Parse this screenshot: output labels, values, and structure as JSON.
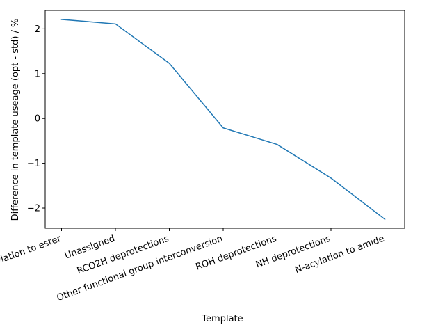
{
  "chart_data": {
    "type": "line",
    "title": "",
    "xlabel": "Template",
    "ylabel": "Difference in template useage (opt - std) / %",
    "categories": [
      "O-acylation to ester",
      "Unassigned",
      "RCO2H deprotections",
      "Other functional group interconversion",
      "ROH deprotections",
      "NH deprotections",
      "N-acylation to amide"
    ],
    "series": [
      {
        "values": [
          2.21,
          2.11,
          1.23,
          -0.21,
          -0.58,
          -1.33,
          -2.25
        ],
        "color": "#1f77b4"
      }
    ],
    "ylim": [
      -2.45,
      2.41
    ],
    "yticks": [
      -2,
      -1,
      0,
      1,
      2
    ],
    "ytick_labels": [
      "−2",
      "−1",
      "0",
      "1",
      "2"
    ],
    "grid": false,
    "legend": "none"
  }
}
